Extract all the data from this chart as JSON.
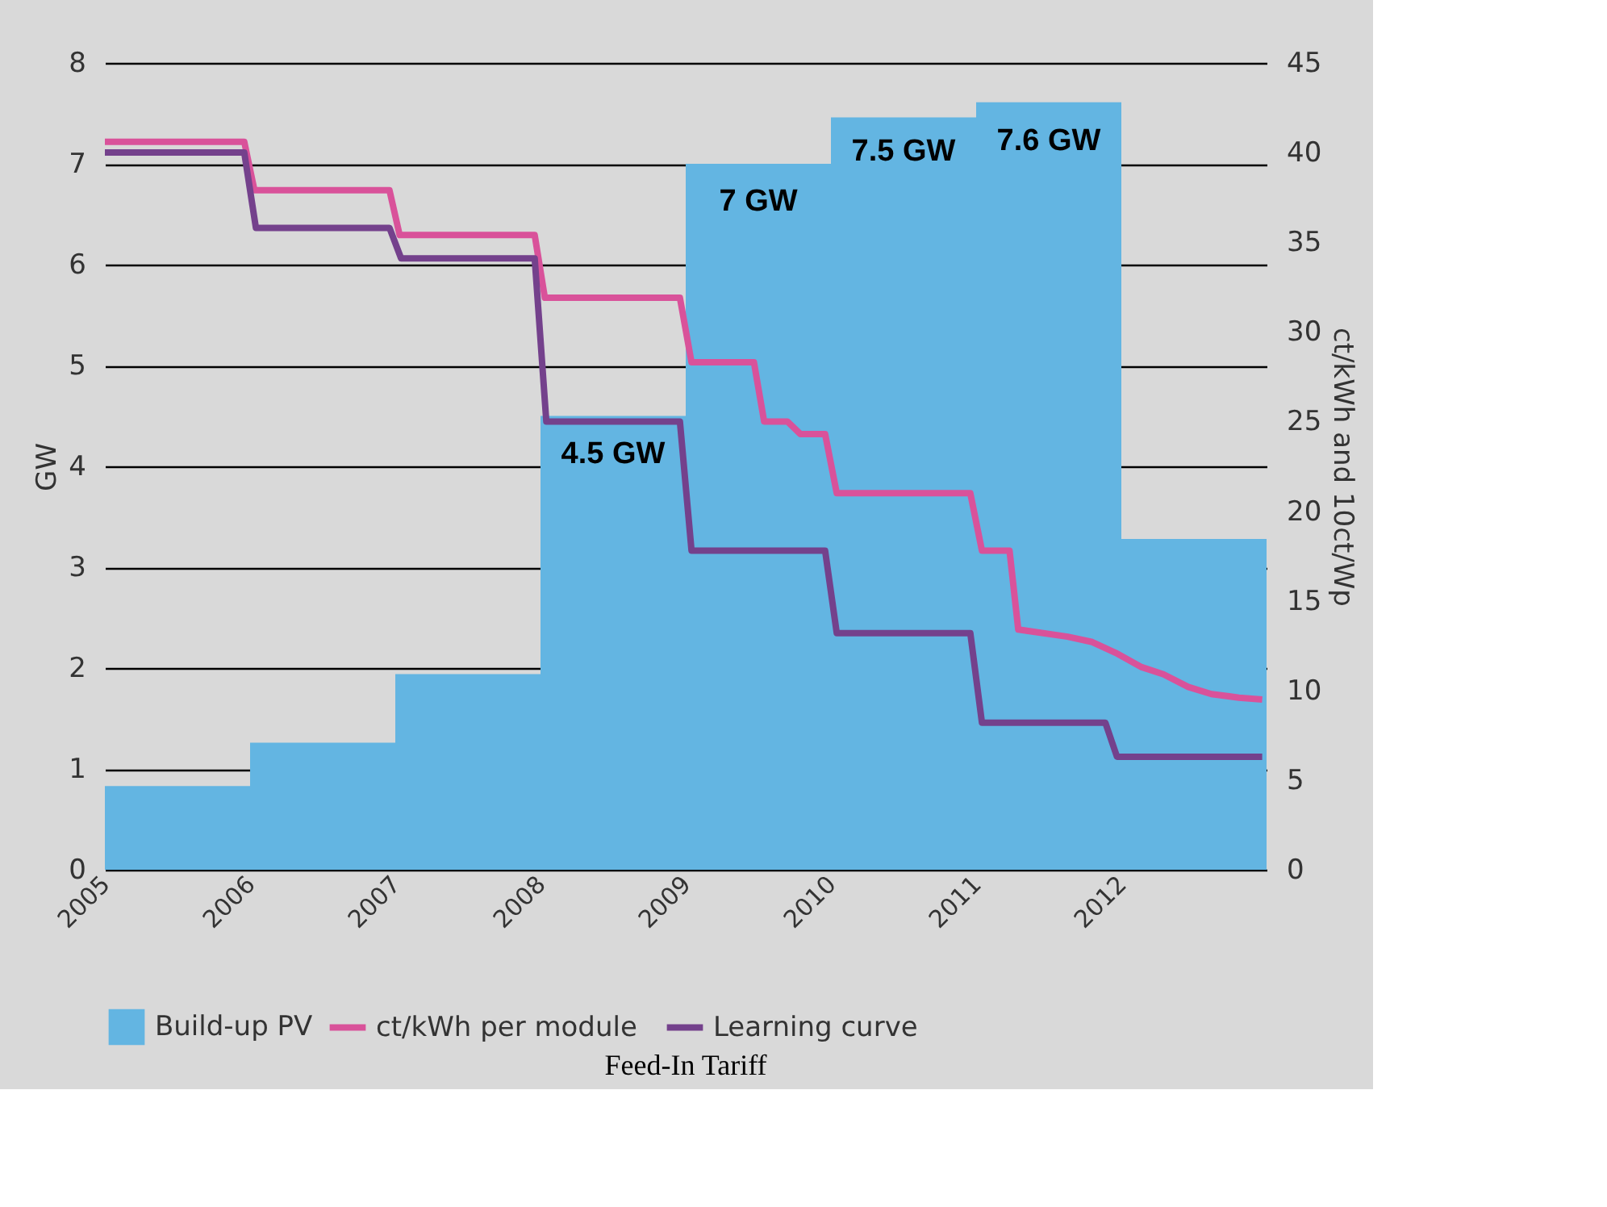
{
  "chart_data": {
    "type": "line",
    "ylabel": "GW",
    "y2label": "ct/kWh and 10ct/Wp",
    "xlim": [
      2005,
      2013
    ],
    "xticks": [
      2005,
      2006,
      2007,
      2008,
      2009,
      2010,
      2011,
      2012
    ],
    "ylim": [
      0,
      8
    ],
    "yticks": [
      0,
      1,
      2,
      3,
      4,
      5,
      6,
      7,
      8
    ],
    "y2lim": [
      0,
      45
    ],
    "y2ticks": [
      0,
      5,
      10,
      15,
      20,
      25,
      30,
      35,
      40,
      45
    ],
    "grid": "y",
    "legend": "bottom",
    "marker": "none",
    "line_style": "solid",
    "annotations": [
      {
        "text": "4.5 GW",
        "x": 2008.5,
        "y": 4.5
      },
      {
        "text": "7 GW",
        "x": 2009.5,
        "y": 7
      },
      {
        "text": "7.5 GW",
        "x": 2010.5,
        "y": 7.5
      },
      {
        "text": "7.6 GW",
        "x": 2011.5,
        "y": 7.6
      },
      "Feed-In Tariff"
    ],
    "series": [
      {
        "name": "Build-up PV",
        "type": "area",
        "color": "#63b5e2",
        "x": [
          2005,
          2006,
          2007,
          2008,
          2009,
          2010,
          2011,
          2012,
          2013
        ],
        "values": [
          0.83,
          1.26,
          1.94,
          4.5,
          7,
          7.46,
          7.61,
          3.28,
          3.28
        ]
      },
      {
        "name": "ct/kWh per module",
        "axis": "y2",
        "color": "#d9529a",
        "x": [
          2005,
          2005.96,
          2006.03,
          2006.96,
          2007.03,
          2007.96,
          2008.03,
          2008.96,
          2009.04,
          2009.47,
          2009.54,
          2009.7,
          2009.79,
          2009.96,
          2010.04,
          2010.96,
          2011.04,
          2011.23,
          2011.29,
          2011.63,
          2011.8,
          2011.96,
          2012.14,
          2012.29,
          2012.46,
          2012.62,
          2012.81,
          2012.97
        ],
        "values": [
          40.6,
          40.6,
          37.9,
          37.9,
          35.4,
          35.4,
          31.9,
          31.9,
          28.3,
          28.3,
          25.0,
          25.0,
          24.3,
          24.3,
          21.0,
          21.0,
          17.8,
          17.8,
          13.4,
          13.0,
          12.7,
          12.1,
          11.3,
          10.9,
          10.2,
          9.8,
          9.6,
          9.5
        ]
      },
      {
        "name": "Learning curve",
        "axis": "y2",
        "color": "#74418c",
        "x": [
          2005,
          2005.96,
          2006.04,
          2006.96,
          2007.04,
          2007.96,
          2008.04,
          2008.96,
          2009.04,
          2009.96,
          2010.04,
          2010.96,
          2011.04,
          2011.89,
          2011.97,
          2012.97
        ],
        "values": [
          40.0,
          40.0,
          35.8,
          35.8,
          34.1,
          34.1,
          25.0,
          25.0,
          17.8,
          17.8,
          13.2,
          13.2,
          8.2,
          8.2,
          6.3,
          6.3
        ]
      }
    ]
  }
}
